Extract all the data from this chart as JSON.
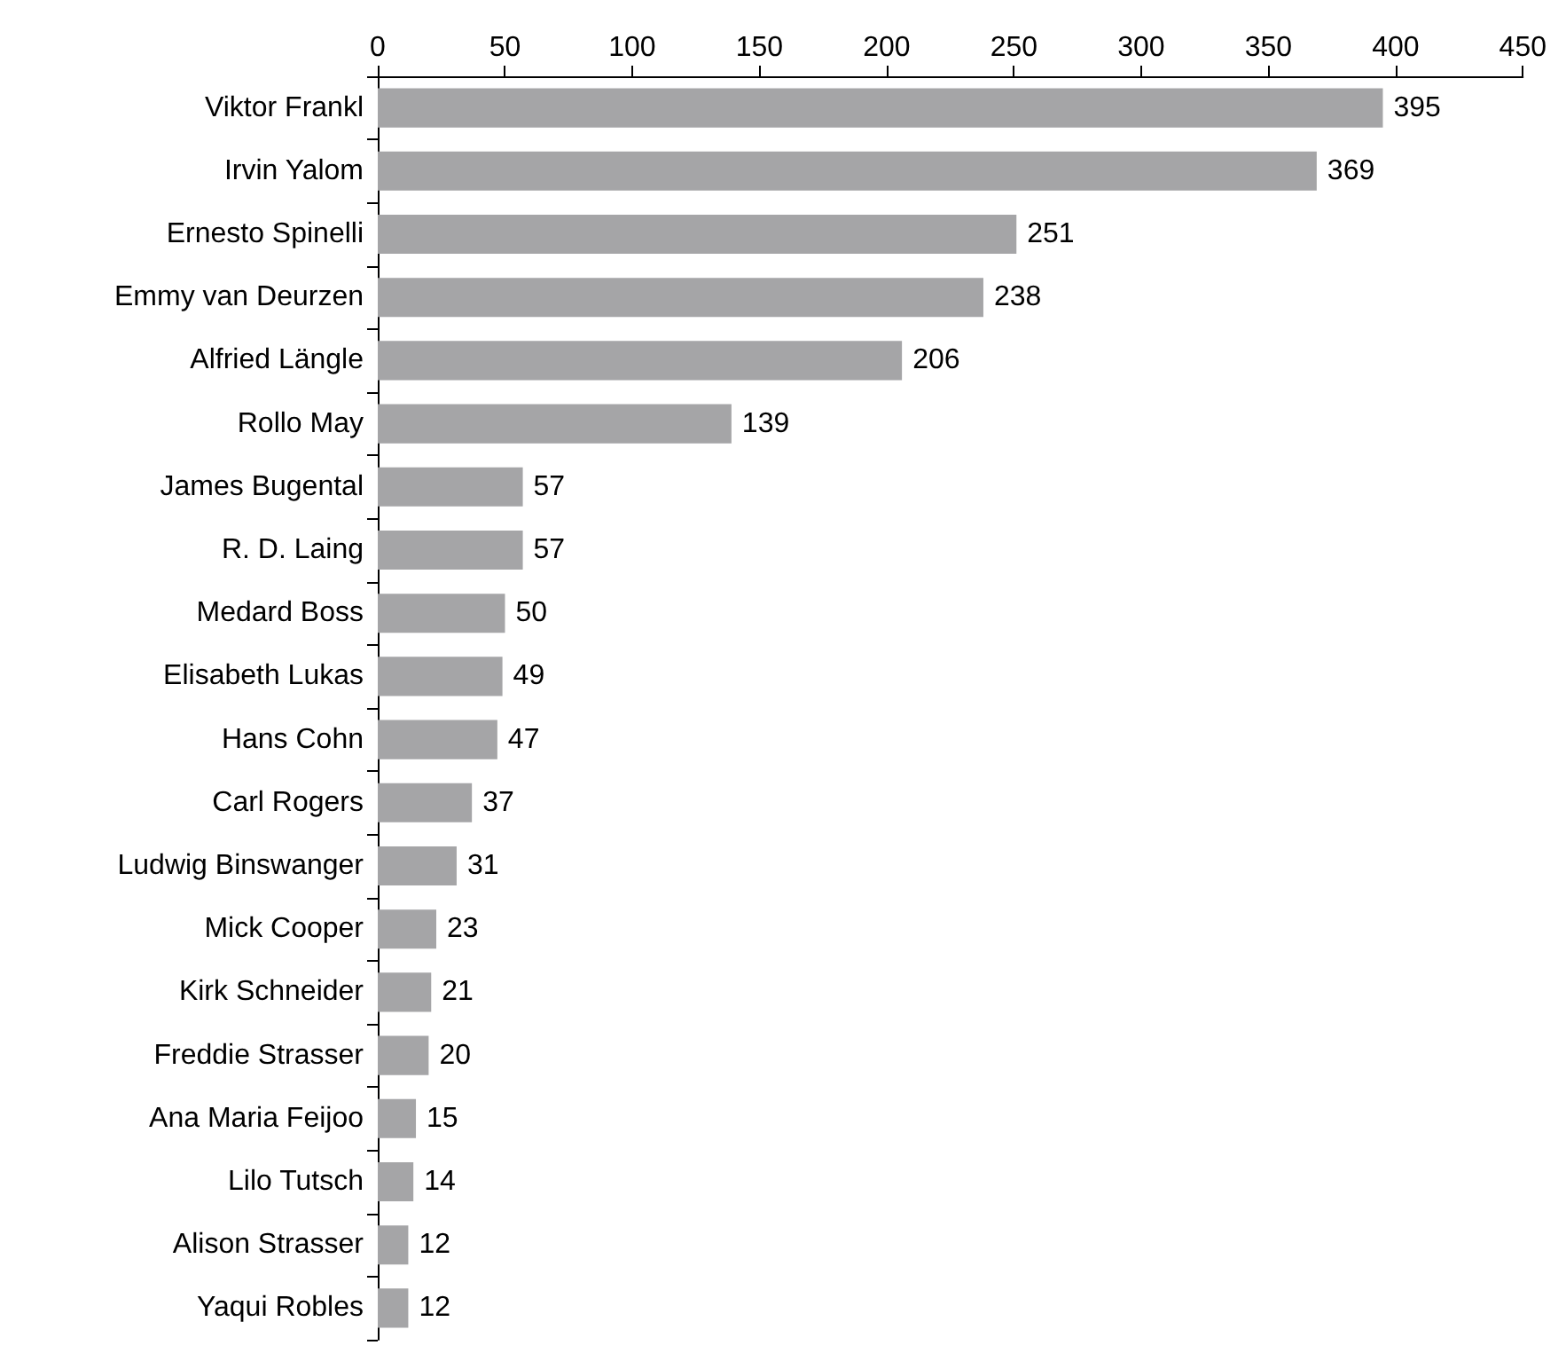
{
  "chart_data": {
    "type": "bar",
    "orientation": "horizontal",
    "categories": [
      "Viktor Frankl",
      "Irvin Yalom",
      "Ernesto Spinelli",
      "Emmy van Deurzen",
      "Alfried Längle",
      "Rollo May",
      "James Bugental",
      "R. D. Laing",
      "Medard Boss",
      "Elisabeth Lukas",
      "Hans Cohn",
      "Carl Rogers",
      "Ludwig Binswanger",
      "Mick Cooper",
      "Kirk Schneider",
      "Freddie Strasser",
      "Ana Maria Feijoo",
      "Lilo Tutsch",
      "Alison Strasser",
      "Yaqui Robles"
    ],
    "values": [
      395,
      369,
      251,
      238,
      206,
      139,
      57,
      57,
      50,
      49,
      47,
      37,
      31,
      23,
      21,
      20,
      15,
      14,
      12,
      12
    ],
    "color": "#a5a5a7",
    "xlim": [
      0,
      450
    ],
    "xticks": [
      0,
      50,
      100,
      150,
      200,
      250,
      300,
      350,
      400,
      450
    ],
    "data_labels": true,
    "grid": false
  }
}
